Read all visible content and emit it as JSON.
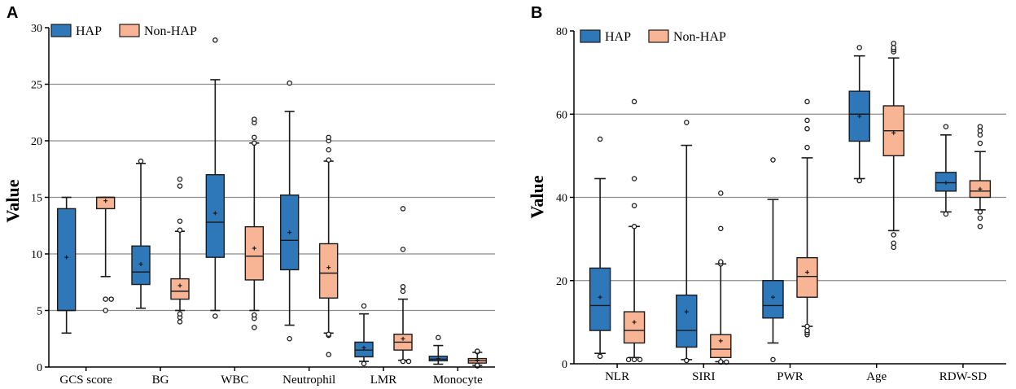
{
  "chart_data": [
    {
      "type": "box",
      "panel": "A",
      "ylabel": "Value",
      "ylim": [
        0,
        30
      ],
      "yticks": [
        0,
        5,
        10,
        15,
        20,
        25,
        30
      ],
      "gridlines": [
        5,
        10,
        15,
        20,
        25
      ],
      "legend": {
        "position": "top-left",
        "entries": [
          "HAP",
          "Non-HAP"
        ]
      },
      "colors": {
        "HAP": "#2e77b8",
        "Non-HAP": "#f7b596",
        "edge": "#1a1a1a",
        "grid": "#8c8c8c"
      },
      "categories": [
        "GCS score",
        "BG",
        "WBC",
        "Neutrophil",
        "LMR",
        "Monocyte"
      ],
      "series": [
        {
          "name": "HAP",
          "boxes": [
            {
              "whisker_low": 3,
              "q1": 5,
              "median": 5,
              "q3": 14,
              "whisker_high": 15,
              "mean": 9.7,
              "outliers": []
            },
            {
              "whisker_low": 5.2,
              "q1": 7.3,
              "median": 8.4,
              "q3": 10.7,
              "whisker_high": 18,
              "mean": 9.1,
              "outliers": [
                18.2
              ]
            },
            {
              "whisker_low": 5,
              "q1": 9.7,
              "median": 12.8,
              "q3": 17,
              "whisker_high": 25.4,
              "mean": 13.6,
              "outliers": [
                4.5,
                28.9
              ]
            },
            {
              "whisker_low": 3.7,
              "q1": 8.6,
              "median": 11.2,
              "q3": 15.2,
              "whisker_high": 22.6,
              "mean": 11.9,
              "outliers": [
                2.5,
                25.1
              ]
            },
            {
              "whisker_low": 0.5,
              "q1": 0.9,
              "median": 1.5,
              "q3": 2.2,
              "whisker_high": 4.7,
              "mean": 1.7,
              "outliers": [
                5.4,
                0.3
              ]
            },
            {
              "whisker_low": 0.25,
              "q1": 0.55,
              "median": 0.7,
              "q3": 0.95,
              "whisker_high": 1.9,
              "mean": 0.75,
              "outliers": [
                2.6
              ]
            }
          ]
        },
        {
          "name": "Non-HAP",
          "boxes": [
            {
              "whisker_low": 8,
              "q1": 14,
              "median": 15,
              "q3": 15,
              "whisker_high": 15,
              "mean": 14.7,
              "outliers": [
                5,
                6,
                6
              ]
            },
            {
              "whisker_low": 5,
              "q1": 6,
              "median": 6.7,
              "q3": 7.8,
              "whisker_high": 12,
              "mean": 7.2,
              "outliers": [
                4,
                4.4,
                4.7,
                12.1,
                12.9,
                16,
                16.6
              ]
            },
            {
              "whisker_low": 5,
              "q1": 7.7,
              "median": 9.8,
              "q3": 12.4,
              "whisker_high": 19.8,
              "mean": 10.5,
              "outliers": [
                3.5,
                4.3,
                4.6,
                19.8,
                20.3,
                21.6,
                21.9
              ]
            },
            {
              "whisker_low": 3,
              "q1": 6.1,
              "median": 8.3,
              "q3": 10.9,
              "whisker_high": 18.2,
              "mean": 8.8,
              "outliers": [
                1.1,
                2.8,
                2.9,
                18.3,
                19.2,
                20,
                20.3
              ]
            },
            {
              "whisker_low": 0.6,
              "q1": 1.5,
              "median": 2.2,
              "q3": 2.9,
              "whisker_high": 6,
              "mean": 2.5,
              "outliers": [
                0.5,
                0.5,
                6.7,
                7.1,
                10.4,
                14
              ]
            },
            {
              "whisker_low": 0.15,
              "q1": 0.35,
              "median": 0.55,
              "q3": 0.75,
              "whisker_high": 1.3,
              "mean": 0.6,
              "outliers": [
                0.1,
                0.15,
                1.35,
                1.4
              ]
            }
          ]
        }
      ]
    },
    {
      "type": "box",
      "panel": "B",
      "ylabel": "Value",
      "ylim": [
        0,
        80
      ],
      "yticks": [
        0,
        20,
        40,
        60,
        80
      ],
      "gridlines": [
        20,
        40,
        60
      ],
      "legend": {
        "position": "top-left",
        "entries": [
          "HAP",
          "Non-HAP"
        ]
      },
      "colors": {
        "HAP": "#2e77b8",
        "Non-HAP": "#f7b596",
        "edge": "#1a1a1a",
        "grid": "#8c8c8c"
      },
      "categories": [
        "NLR",
        "SIRI",
        "PWR",
        "Age",
        "RDW-SD"
      ],
      "series": [
        {
          "name": "HAP",
          "boxes": [
            {
              "whisker_low": 2.5,
              "q1": 8,
              "median": 14,
              "q3": 23,
              "whisker_high": 44.5,
              "mean": 16,
              "outliers": [
                1.8,
                54
              ]
            },
            {
              "whisker_low": 1,
              "q1": 4,
              "median": 8,
              "q3": 16.5,
              "whisker_high": 52.5,
              "mean": 12.5,
              "outliers": [
                0.8,
                58
              ]
            },
            {
              "whisker_low": 5,
              "q1": 11,
              "median": 14,
              "q3": 20,
              "whisker_high": 39.5,
              "mean": 16,
              "outliers": [
                1,
                49
              ]
            },
            {
              "whisker_low": 44.5,
              "q1": 53.5,
              "median": 60,
              "q3": 65.5,
              "whisker_high": 74,
              "mean": 59.5,
              "outliers": [
                44,
                76
              ]
            },
            {
              "whisker_low": 36.5,
              "q1": 41.5,
              "median": 43.5,
              "q3": 46,
              "whisker_high": 55,
              "mean": 43.5,
              "outliers": [
                36,
                57
              ]
            }
          ]
        },
        {
          "name": "Non-HAP",
          "boxes": [
            {
              "whisker_low": 1.5,
              "q1": 5,
              "median": 8,
              "q3": 12.5,
              "whisker_high": 33,
              "mean": 10,
              "outliers": [
                1,
                1,
                1,
                33,
                38,
                44.5,
                63
              ]
            },
            {
              "whisker_low": 0.5,
              "q1": 1.5,
              "median": 3.5,
              "q3": 7,
              "whisker_high": 24,
              "mean": 5.5,
              "outliers": [
                0.4,
                0.4,
                0.5,
                24,
                24.5,
                32.5,
                41
              ]
            },
            {
              "whisker_low": 9,
              "q1": 16,
              "median": 21,
              "q3": 25.5,
              "whisker_high": 49.5,
              "mean": 22,
              "outliers": [
                7,
                7.5,
                8,
                9,
                52,
                56.5,
                58.5,
                63
              ]
            },
            {
              "whisker_low": 32,
              "q1": 50,
              "median": 56,
              "q3": 62,
              "whisker_high": 73.5,
              "mean": 55.5,
              "outliers": [
                28,
                29,
                31,
                75,
                75.5,
                76,
                77
              ]
            },
            {
              "whisker_low": 37,
              "q1": 40,
              "median": 41.5,
              "q3": 44,
              "whisker_high": 51,
              "mean": 42,
              "outliers": [
                33,
                35,
                36.5,
                53,
                55,
                56,
                57
              ]
            }
          ]
        }
      ]
    }
  ]
}
